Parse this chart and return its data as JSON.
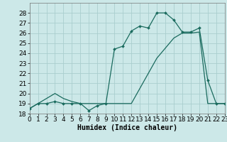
{
  "title": "",
  "xlabel": "Humidex (Indice chaleur)",
  "ylabel": "",
  "bg_color": "#cce8e8",
  "grid_color": "#aacece",
  "line_color": "#1a6b5e",
  "x_data": [
    0,
    1,
    2,
    3,
    4,
    5,
    6,
    7,
    8,
    9,
    10,
    11,
    12,
    13,
    14,
    15,
    16,
    17,
    18,
    19,
    20,
    21,
    22,
    23
  ],
  "y_curve": [
    18.5,
    19.0,
    19.0,
    19.2,
    19.0,
    19.0,
    19.0,
    18.3,
    18.8,
    19.0,
    24.4,
    24.7,
    26.2,
    26.7,
    26.5,
    28.0,
    28.0,
    27.3,
    26.1,
    26.1,
    26.5,
    21.3,
    19.0,
    19.0
  ],
  "y_ref": [
    18.5,
    19.0,
    19.5,
    20.0,
    19.5,
    19.2,
    19.0,
    19.0,
    19.0,
    19.0,
    19.0,
    19.0,
    19.0,
    20.5,
    22.0,
    23.5,
    24.5,
    25.5,
    26.0,
    26.0,
    26.1,
    19.0,
    19.0,
    19.0
  ],
  "ylim": [
    18,
    29
  ],
  "xlim": [
    0,
    23
  ],
  "yticks": [
    18,
    19,
    20,
    21,
    22,
    23,
    24,
    25,
    26,
    27,
    28
  ],
  "xticks": [
    0,
    1,
    2,
    3,
    4,
    5,
    6,
    7,
    8,
    9,
    10,
    11,
    12,
    13,
    14,
    15,
    16,
    17,
    18,
    19,
    20,
    21,
    22,
    23
  ],
  "xlabel_fontsize": 7,
  "tick_fontsize": 6.5
}
